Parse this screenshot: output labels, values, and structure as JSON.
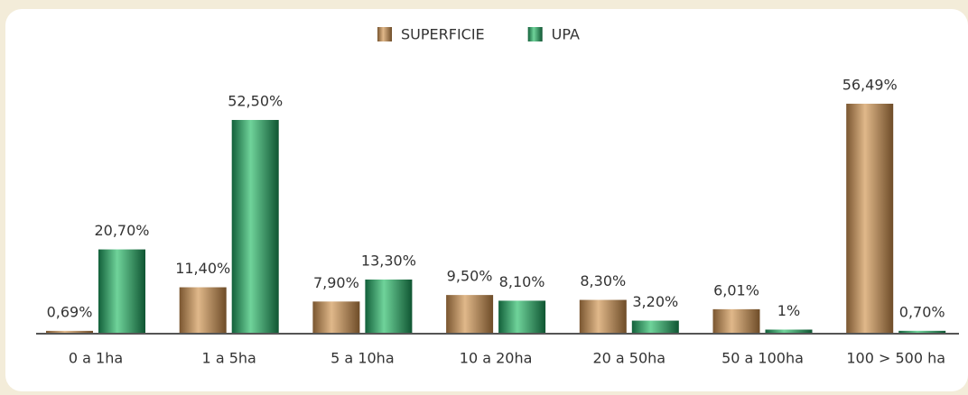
{
  "chart_data": {
    "type": "bar",
    "categories": [
      "0 a 1ha",
      "1 a 5ha",
      "5 a 10ha",
      "10 a 20ha",
      "20 a 50ha",
      "50 a 100ha",
      "100 > 500 ha"
    ],
    "series": [
      {
        "name": "SUPERFICIE",
        "color": "#b08a5c",
        "values": [
          0.69,
          11.4,
          7.9,
          9.5,
          8.3,
          6.01,
          56.49
        ],
        "value_labels": [
          "0,69%",
          "11,40%",
          "7,90%",
          "9,50%",
          "8,30%",
          "6,01%",
          "56,49%"
        ]
      },
      {
        "name": "UPA",
        "color": "#2f9a5c",
        "values": [
          20.7,
          52.5,
          13.3,
          8.1,
          3.2,
          1,
          0.7
        ],
        "value_labels": [
          "20,70%",
          "52,50%",
          "13,30%",
          "8,10%",
          "3,20%",
          "1%",
          "0,70%"
        ]
      }
    ],
    "legend": "top"
  }
}
